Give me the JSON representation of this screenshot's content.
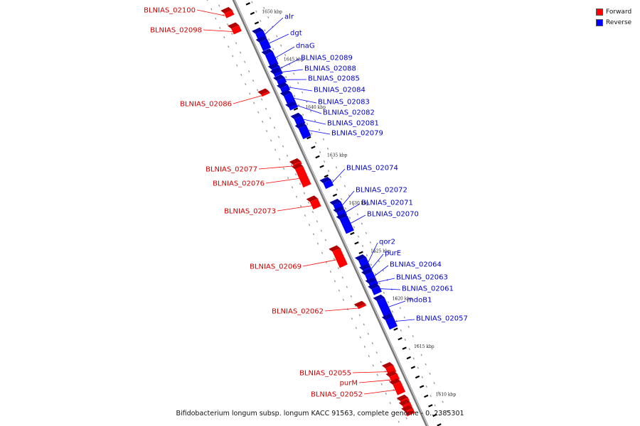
{
  "colors": {
    "forward": "#ff0000",
    "reverse": "#0000ff",
    "backbone": "#777777"
  },
  "legend": [
    {
      "label": "Forward",
      "color": "#ff0000"
    },
    {
      "label": "Reverse",
      "color": "#0000ff"
    }
  ],
  "caption": "Bifidobacterium longum subsp. longum KACC 91563, complete genome - 0..2385301",
  "ticks": [
    {
      "kbp": 1650,
      "label": "1650 kbp"
    },
    {
      "kbp": 1645,
      "label": "1645 kbp"
    },
    {
      "kbp": 1640,
      "label": "1640 kbp"
    },
    {
      "kbp": 1635,
      "label": "1635 kbp"
    },
    {
      "kbp": 1630,
      "label": "1630 kbp"
    },
    {
      "kbp": 1625,
      "label": "1625 kbp"
    },
    {
      "kbp": 1620,
      "label": "1620 kbp"
    },
    {
      "kbp": 1615,
      "label": "1615 kbp"
    },
    {
      "kbp": 1610,
      "label": "1610 kbp"
    }
  ],
  "genes": [
    {
      "name": "BLNIAS_02100",
      "strand": "forward",
      "start": 1651.1,
      "end": 1650.6
    },
    {
      "name": "BLNIAS_02098",
      "strand": "forward",
      "start": 1649.5,
      "end": 1648.9
    },
    {
      "name": "alr",
      "strand": "reverse",
      "start": 1648.1,
      "end": 1647.3
    },
    {
      "name": "dgt",
      "strand": "reverse",
      "start": 1647.2,
      "end": 1646.3
    },
    {
      "name": "dnaG",
      "strand": "reverse",
      "start": 1645.9,
      "end": 1644.6
    },
    {
      "name": "BLNIAS_02089",
      "strand": "reverse",
      "start": 1644.4,
      "end": 1643.9
    },
    {
      "name": "BLNIAS_02088",
      "strand": "reverse",
      "start": 1643.9,
      "end": 1643.6
    },
    {
      "name": "BLNIAS_02085",
      "strand": "reverse",
      "start": 1643.2,
      "end": 1642.7
    },
    {
      "name": "BLNIAS_02084",
      "strand": "reverse",
      "start": 1642.4,
      "end": 1641.9
    },
    {
      "name": "BLNIAS_02086",
      "strand": "forward",
      "start": 1642.6,
      "end": 1642.4
    },
    {
      "name": "BLNIAS_02083",
      "strand": "reverse",
      "start": 1641.6,
      "end": 1640.4
    },
    {
      "name": "BLNIAS_02082",
      "strand": "reverse",
      "start": 1640.4,
      "end": 1640.1
    },
    {
      "name": "BLNIAS_02081",
      "strand": "reverse",
      "start": 1639.2,
      "end": 1638.4
    },
    {
      "name": "BLNIAS_02079",
      "strand": "reverse",
      "start": 1638.2,
      "end": 1637.1
    },
    {
      "name": "BLNIAS_02077",
      "strand": "forward",
      "start": 1635.3,
      "end": 1635.0
    },
    {
      "name": "BLNIAS_02076",
      "strand": "forward",
      "start": 1634.8,
      "end": 1632.9
    },
    {
      "name": "BLNIAS_02074",
      "strand": "reverse",
      "start": 1632.5,
      "end": 1631.9
    },
    {
      "name": "BLNIAS_02073",
      "strand": "forward",
      "start": 1631.4,
      "end": 1630.6
    },
    {
      "name": "BLNIAS_02072",
      "strand": "reverse",
      "start": 1630.2,
      "end": 1629.5
    },
    {
      "name": "BLNIAS_02071",
      "strand": "reverse",
      "start": 1629.4,
      "end": 1628.8
    },
    {
      "name": "BLNIAS_02070",
      "strand": "reverse",
      "start": 1628.7,
      "end": 1627.2
    },
    {
      "name": "BLNIAS_02069",
      "strand": "forward",
      "start": 1626.2,
      "end": 1624.5
    },
    {
      "name": "qor2",
      "strand": "reverse",
      "start": 1624.4,
      "end": 1623.4
    },
    {
      "name": "purE",
      "strand": "reverse",
      "start": 1623.4,
      "end": 1623.0
    },
    {
      "name": "BLNIAS_02064",
      "strand": "reverse",
      "start": 1622.9,
      "end": 1622.0
    },
    {
      "name": "BLNIAS_02063",
      "strand": "reverse",
      "start": 1622.0,
      "end": 1621.6
    },
    {
      "name": "BLNIAS_02061",
      "strand": "reverse",
      "start": 1621.4,
      "end": 1620.8
    },
    {
      "name": "BLNIAS_02062",
      "strand": "forward",
      "start": 1620.4,
      "end": 1620.2
    },
    {
      "name": "mdoB1",
      "strand": "reverse",
      "start": 1620.2,
      "end": 1618.2
    },
    {
      "name": "BLNIAS_02057",
      "strand": "reverse",
      "start": 1618.2,
      "end": 1617.2
    },
    {
      "name": "BLNIAS_02055",
      "strand": "forward",
      "start": 1614.0,
      "end": 1613.3
    },
    {
      "name": "purM",
      "strand": "forward",
      "start": 1613.1,
      "end": 1612.5
    },
    {
      "name": "BLNIAS_02052",
      "strand": "forward",
      "start": 1612.3,
      "end": 1611.2
    },
    {
      "name": "",
      "strand": "forward",
      "start": 1610.6,
      "end": 1610.2
    },
    {
      "name": "",
      "strand": "forward",
      "start": 1610.1,
      "end": 1609.6
    },
    {
      "name": "",
      "strand": "forward",
      "start": 1609.5,
      "end": 1609.0
    }
  ]
}
